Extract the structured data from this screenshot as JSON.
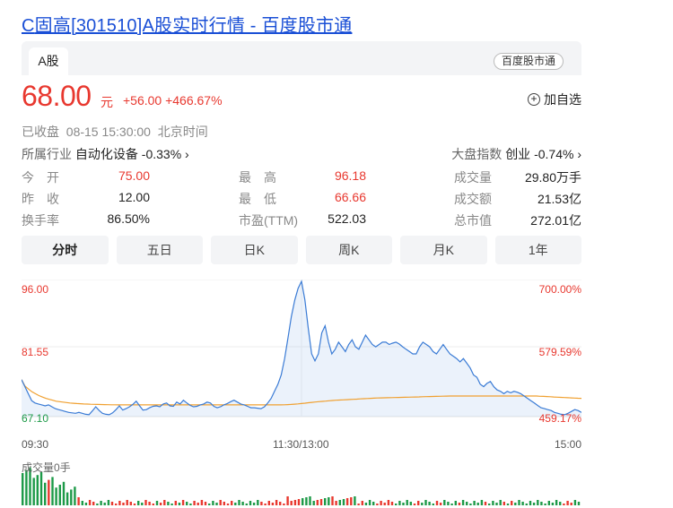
{
  "title": {
    "prefix": "C",
    "name": "固高",
    "rest": "[301510]A股实时行情 - 百度股市通"
  },
  "tabs": {
    "active": "A股"
  },
  "brand_badge": "百度股市通",
  "quote": {
    "price": "68.00",
    "currency": "元",
    "change": "+56.00 +466.67%"
  },
  "add_watch": "加自选",
  "status": "已收盘  08-15 15:30:00  北京时间",
  "industry": {
    "label": "所属行业",
    "value": "自动化设备 -0.33%"
  },
  "market_index": {
    "label": "大盘指数",
    "value": "创业 -0.74%"
  },
  "stats": {
    "open": {
      "label": "今　开",
      "value": "75.00"
    },
    "prev_close": {
      "label": "昨　收",
      "value": "12.00"
    },
    "turnover_rate": {
      "label": "换手率",
      "value": "86.50%"
    },
    "high": {
      "label": "最　高",
      "value": "96.18"
    },
    "low": {
      "label": "最　低",
      "value": "66.66"
    },
    "pe": {
      "label": "市盈(TTM)",
      "value": "522.03"
    },
    "volume": {
      "label": "成交量",
      "value": "29.80万手"
    },
    "amount": {
      "label": "成交额",
      "value": "21.53亿"
    },
    "market_cap": {
      "label": "总市值",
      "value": "272.01亿"
    }
  },
  "period_tabs": [
    "分时",
    "五日",
    "日K",
    "周K",
    "月K",
    "1年"
  ],
  "chart": {
    "y_left": [
      "96.00",
      "81.55",
      "67.10"
    ],
    "y_right": [
      "700.00%",
      "579.59%",
      "459.17%"
    ],
    "x_labels": [
      "09:30",
      "11:30/13:00",
      "15:00"
    ],
    "volume_label": "成交量0手",
    "colors": {
      "price_line": "#3a7bd5",
      "avg_line": "#f0a030",
      "up": "#e8382f",
      "down": "#1d9a48"
    }
  },
  "chart_data": {
    "type": "line",
    "title": "",
    "ylim": [
      67.1,
      96.0
    ],
    "x_range": [
      "09:30",
      "15:00"
    ],
    "series": [
      {
        "values": [
          75.0,
          73.5,
          72.0,
          70.5,
          70.0,
          69.8,
          69.6,
          69.4,
          69.6,
          69.2,
          68.8,
          68.6,
          68.4,
          68.2,
          68.0,
          67.9,
          67.8,
          68.0,
          67.8,
          67.6,
          67.5,
          68.3,
          69.2,
          68.4,
          67.8,
          67.6,
          67.5,
          67.9,
          68.6,
          69.4,
          68.5,
          68.8,
          69.2,
          69.7,
          70.4,
          69.4,
          68.5,
          68.6,
          69.0,
          69.3,
          69.4,
          69.2,
          69.8,
          70.0,
          69.4,
          69.3,
          70.2,
          69.8,
          70.6,
          70.0,
          69.5,
          69.2,
          69.3,
          69.6,
          69.8,
          70.2,
          70.0,
          69.3,
          69.0,
          69.2,
          69.6,
          69.9,
          70.3,
          70.6,
          70.2,
          69.8,
          69.6,
          69.3,
          69.0,
          69.0,
          68.9,
          68.8,
          69.2,
          70.0,
          71.0,
          72.5,
          74.0,
          76.0,
          79.5,
          84.0,
          88.5,
          92.0,
          94.5,
          96.0,
          92.0,
          86.0,
          80.5,
          79.0,
          80.5,
          85.0,
          86.5,
          83.0,
          80.5,
          81.5,
          83.0,
          82.0,
          81.0,
          82.5,
          83.5,
          82.0,
          81.5,
          83.0,
          84.5,
          83.5,
          82.5,
          82.0,
          82.5,
          83.0,
          83.0,
          82.5,
          82.8,
          83.0,
          82.6,
          82.0,
          81.5,
          81.0,
          80.5,
          80.5,
          82.0,
          83.0,
          82.5,
          82.0,
          81.0,
          80.5,
          81.5,
          82.5,
          81.5,
          80.5,
          80.0,
          79.5,
          78.8,
          79.5,
          78.5,
          77.5,
          76.0,
          75.5,
          74.0,
          73.5,
          74.2,
          74.6,
          73.5,
          72.8,
          72.5,
          72.0,
          72.5,
          72.2,
          72.5,
          72.3,
          72.0,
          71.5,
          71.0,
          70.5,
          70.0,
          69.5,
          69.0,
          68.8,
          68.6,
          68.4,
          68.0,
          67.8,
          67.6,
          67.5,
          67.8,
          68.2,
          68.6,
          68.4,
          68.0
        ]
      },
      {
        "values": [
          75.0,
          73.6,
          73.0,
          72.4,
          72.0,
          71.6,
          71.3,
          71.0,
          70.8,
          70.6,
          70.4,
          70.3,
          70.2,
          70.1,
          70.0,
          69.95,
          69.9,
          69.85,
          69.8,
          69.78,
          69.75,
          69.72,
          69.7,
          69.68,
          69.66,
          69.65,
          69.63,
          69.62,
          69.6,
          69.6,
          69.6,
          69.6,
          69.6,
          69.6,
          69.6,
          69.6,
          69.6,
          69.6,
          69.6,
          69.6,
          69.6,
          69.6,
          69.6,
          69.6,
          69.6,
          69.6,
          69.6,
          69.6,
          69.6,
          69.6,
          69.6,
          69.6,
          69.6,
          69.6,
          69.6,
          69.6,
          69.6,
          69.6,
          69.6,
          69.6,
          69.6,
          69.6,
          69.6,
          69.6,
          69.6,
          69.6,
          69.6,
          69.6,
          69.6,
          69.6,
          69.6,
          69.6,
          69.6,
          69.6,
          69.6,
          69.6,
          69.62,
          69.66,
          69.7,
          69.76,
          69.82,
          69.9,
          69.98,
          70.06,
          70.14,
          70.22,
          70.3,
          70.36,
          70.42,
          70.48,
          70.54,
          70.6,
          70.64,
          70.68,
          70.72,
          70.76,
          70.8,
          70.84,
          70.88,
          70.92,
          70.96,
          71.0,
          71.04,
          71.08,
          71.1,
          71.12,
          71.14,
          71.16,
          71.18,
          71.2,
          71.22,
          71.24,
          71.26,
          71.28,
          71.3,
          71.32,
          71.34,
          71.36,
          71.38,
          71.4,
          71.42,
          71.44,
          71.46,
          71.48,
          71.5,
          71.5,
          71.5,
          71.5,
          71.5,
          71.5,
          71.5,
          71.5,
          71.5,
          71.5,
          71.5,
          71.5,
          71.5,
          71.5,
          71.5,
          71.5,
          71.5,
          71.5,
          71.5,
          71.5,
          71.5,
          71.5,
          71.5,
          71.5,
          71.5,
          71.5,
          71.45,
          71.42,
          71.38,
          71.35,
          71.3,
          71.26,
          71.22,
          71.18,
          71.14,
          71.1,
          71.06,
          71.02,
          71.0
        ]
      }
    ]
  }
}
